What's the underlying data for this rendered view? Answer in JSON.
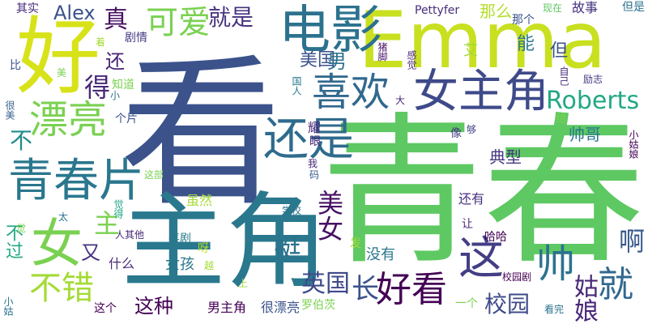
{
  "words": [
    {
      "text": "看",
      "color": "#3b528b"
    },
    {
      "text": "青春",
      "color": "#5ec962"
    },
    {
      "text": "Emma",
      "color": "#c8e020"
    },
    {
      "text": "主角",
      "color": "#2a788e"
    },
    {
      "text": "好",
      "color": "#d8e219"
    },
    {
      "text": "电影",
      "color": "#2c728e"
    },
    {
      "text": "女主角",
      "color": "#3e4a89"
    },
    {
      "text": "还是",
      "color": "#2f6b8e"
    },
    {
      "text": "喜欢",
      "color": "#31688e"
    },
    {
      "text": "青春片",
      "color": "#2a778e"
    },
    {
      "text": "漂亮",
      "color": "#7ad151"
    },
    {
      "text": "女",
      "color": "#7ad151"
    },
    {
      "text": "可爱",
      "color": "#7ad151"
    },
    {
      "text": "这",
      "color": "#433e85"
    },
    {
      "text": "好看",
      "color": "#440154"
    },
    {
      "text": "不错",
      "color": "#a5db36"
    },
    {
      "text": "Roberts",
      "color": "#22a884"
    },
    {
      "text": "帅",
      "color": "#2c728e"
    },
    {
      "text": "就",
      "color": "#31688e"
    },
    {
      "text": "就是",
      "color": "#46327e"
    },
    {
      "text": "真",
      "color": "#471164"
    },
    {
      "text": "Alex",
      "color": "#3b528b"
    },
    {
      "text": "英国",
      "color": "#3e4a89"
    },
    {
      "text": "美国",
      "color": "#3b528b"
    },
    {
      "text": "姑娘",
      "color": "#482878"
    },
    {
      "text": "挺",
      "color": "#2c728e"
    },
    {
      "text": "啊",
      "color": "#38598c"
    },
    {
      "text": "美女",
      "color": "#471164"
    },
    {
      "text": "校园",
      "color": "#3e4a89"
    },
    {
      "text": "这种",
      "color": "#440154"
    },
    {
      "text": "得",
      "color": "#482878"
    },
    {
      "text": "还",
      "color": "#482475"
    },
    {
      "text": "男",
      "color": "#2c728e"
    },
    {
      "text": "长",
      "color": "#3b528b"
    },
    {
      "text": "不",
      "color": "#228c8d"
    },
    {
      "text": "又",
      "color": "#46327e"
    },
    {
      "text": "主",
      "color": "#7ad151"
    },
    {
      "text": "帅哥",
      "color": "#2a778e"
    },
    {
      "text": "典型",
      "color": "#453882"
    },
    {
      "text": "能",
      "color": "#2a778e"
    },
    {
      "text": "但",
      "color": "#3b528b"
    },
    {
      "text": "那么",
      "color": "#b5de2b"
    },
    {
      "text": "那个",
      "color": "#3b528b"
    },
    {
      "text": "故事",
      "color": "#46327e"
    },
    {
      "text": "现在",
      "color": "#5ec962"
    },
    {
      "text": "但是",
      "color": "#2c728e"
    },
    {
      "text": "其实",
      "color": "#482878"
    },
    {
      "text": "Pettyfer",
      "color": "#472d7b"
    },
    {
      "text": "剧情",
      "color": "#453882"
    },
    {
      "text": "猪脚",
      "color": "#471164"
    },
    {
      "text": "艾",
      "color": "#a2da37"
    },
    {
      "text": "励志",
      "color": "#443a83"
    },
    {
      "text": "自己",
      "color": "#482878"
    },
    {
      "text": "给",
      "color": "#7ad151"
    },
    {
      "text": "够",
      "color": "#414487"
    },
    {
      "text": "像",
      "color": "#453882"
    },
    {
      "text": "大",
      "color": "#482878"
    },
    {
      "text": "国人",
      "color": "#2a788e"
    },
    {
      "text": "感觉",
      "color": "#482878"
    },
    {
      "text": "个片",
      "color": "#3b528b"
    },
    {
      "text": "知道",
      "color": "#7ad151"
    },
    {
      "text": "小",
      "color": "#2c728e"
    },
    {
      "text": "美",
      "color": "#7ad151"
    },
    {
      "text": "比",
      "color": "#3b528b"
    },
    {
      "text": "很美",
      "color": "#355f8d"
    },
    {
      "text": "这部",
      "color": "#7ad151"
    },
    {
      "text": "觉得",
      "color": "#20a486"
    },
    {
      "text": "虽然",
      "color": "#a5db36"
    },
    {
      "text": "还有",
      "color": "#46327e"
    },
    {
      "text": "让",
      "color": "#482878"
    },
    {
      "text": "哈哈",
      "color": "#440154"
    },
    {
      "text": "校园剧",
      "color": "#440154"
    },
    {
      "text": "小姑娘",
      "color": "#440154"
    },
    {
      "text": "不过",
      "color": "#22a884"
    },
    {
      "text": "太",
      "color": "#2c728e"
    },
    {
      "text": "人其他",
      "color": "#482878"
    },
    {
      "text": "喜剧",
      "color": "#2a788e"
    },
    {
      "text": "呀",
      "color": "#b5de2b"
    },
    {
      "text": "发",
      "color": "#a5db36"
    },
    {
      "text": "没有",
      "color": "#2a778e"
    },
    {
      "text": "什么",
      "color": "#482878"
    },
    {
      "text": "女孩",
      "color": "#2a788e"
    },
    {
      "text": "学校",
      "color": "#2c728e"
    },
    {
      "text": "越",
      "color": "#a5db36"
    },
    {
      "text": "上",
      "color": "#a2da37"
    },
    {
      "text": "小姑",
      "color": "#2c728e"
    },
    {
      "text": "这个",
      "color": "#440154"
    },
    {
      "text": "男主角",
      "color": "#440154"
    },
    {
      "text": "很漂亮",
      "color": "#3b528b"
    },
    {
      "text": "罗伯茨",
      "color": "#7ad151"
    },
    {
      "text": "一个",
      "color": "#7ad151"
    },
    {
      "text": "看完",
      "color": "#2c728e"
    },
    {
      "text": "着",
      "color": "#a5db36"
    },
    {
      "text": "耀",
      "color": "#482878"
    },
    {
      "text": "眼",
      "color": "#482878"
    },
    {
      "text": "我",
      "color": "#482878"
    },
    {
      "text": "码",
      "color": "#38598c"
    },
    {
      "text": "觉",
      "color": "#7ad151"
    }
  ]
}
